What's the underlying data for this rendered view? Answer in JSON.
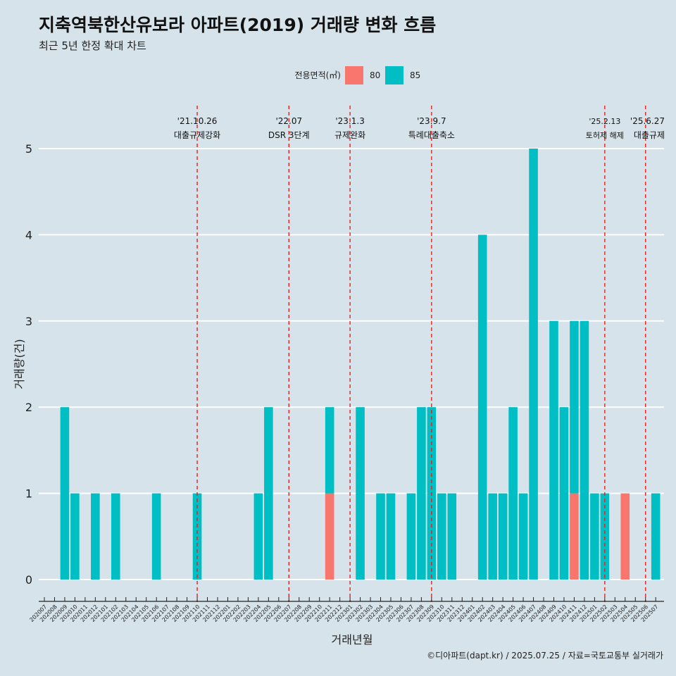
{
  "chart_data": {
    "type": "bar",
    "title": "지축역북한산유보라 아파트(2019) 거래량 변화 흐름",
    "subtitle": "최근 5년 한정 확대 차트",
    "xlabel": "거래년월",
    "ylabel": "거래량(건)",
    "ylim": [
      0,
      5
    ],
    "yticks": [
      0,
      1,
      2,
      3,
      4,
      5
    ],
    "legend": {
      "title": "전용면적(㎡)",
      "position": "top",
      "entries": [
        {
          "name": "80",
          "color": "#f8766d"
        },
        {
          "name": "85",
          "color": "#00bfc4"
        }
      ]
    },
    "categories": [
      "202007",
      "202008",
      "202009",
      "202010",
      "202011",
      "202012",
      "202101",
      "202102",
      "202103",
      "202104",
      "202105",
      "202106",
      "202107",
      "202108",
      "202109",
      "202110",
      "202111",
      "202112",
      "202201",
      "202202",
      "202203",
      "202204",
      "202205",
      "202206",
      "202207",
      "202208",
      "202209",
      "202210",
      "202211",
      "202212",
      "202301",
      "202302",
      "202303",
      "202304",
      "202305",
      "202306",
      "202307",
      "202308",
      "202309",
      "202310",
      "202311",
      "202312",
      "202401",
      "202402",
      "202403",
      "202404",
      "202405",
      "202406",
      "202407",
      "202408",
      "202409",
      "202410",
      "202411",
      "202412",
      "202501",
      "202502",
      "202503",
      "202504",
      "202505",
      "202506",
      "202507"
    ],
    "series": [
      {
        "name": "80",
        "color": "#f8766d",
        "values": [
          0,
          0,
          0,
          0,
          0,
          0,
          0,
          0,
          0,
          0,
          0,
          0,
          0,
          0,
          0,
          0,
          0,
          0,
          0,
          0,
          0,
          0,
          0,
          0,
          0,
          0,
          0,
          0,
          1,
          0,
          0,
          0,
          0,
          0,
          0,
          0,
          0,
          0,
          0,
          0,
          0,
          0,
          0,
          0,
          0,
          0,
          0,
          0,
          0,
          0,
          0,
          0,
          1,
          0,
          0,
          0,
          0,
          1,
          0,
          0,
          0
        ]
      },
      {
        "name": "85",
        "color": "#00bfc4",
        "values": [
          0,
          0,
          2,
          1,
          0,
          1,
          0,
          1,
          0,
          0,
          0,
          1,
          0,
          0,
          0,
          1,
          0,
          0,
          0,
          0,
          0,
          1,
          2,
          0,
          0,
          0,
          0,
          0,
          1,
          0,
          0,
          2,
          0,
          1,
          1,
          0,
          1,
          2,
          2,
          1,
          1,
          0,
          0,
          4,
          1,
          1,
          2,
          1,
          5,
          0,
          3,
          2,
          2,
          3,
          1,
          1,
          0,
          0,
          0,
          0,
          1
        ]
      }
    ],
    "events": [
      {
        "month": "202110",
        "date": "'21.10.26",
        "label": "대출규제강화"
      },
      {
        "month": "202207",
        "date": "'22.07",
        "label": "DSR 3단계"
      },
      {
        "month": "202301",
        "date": "'23.1.3",
        "label": "규제완화"
      },
      {
        "month": "202309",
        "date": "'23.9.7",
        "label": "특례대출축소"
      },
      {
        "month": "202502",
        "date": "'25.2.13",
        "label": "토허제 해제"
      },
      {
        "month": "202506",
        "date": "'25.6.27",
        "label": "대출규제"
      }
    ],
    "grid": true
  },
  "caption": "©디아파트(dapt.kr) / 2025.07.25 / 자료=국토교통부 실거래가"
}
